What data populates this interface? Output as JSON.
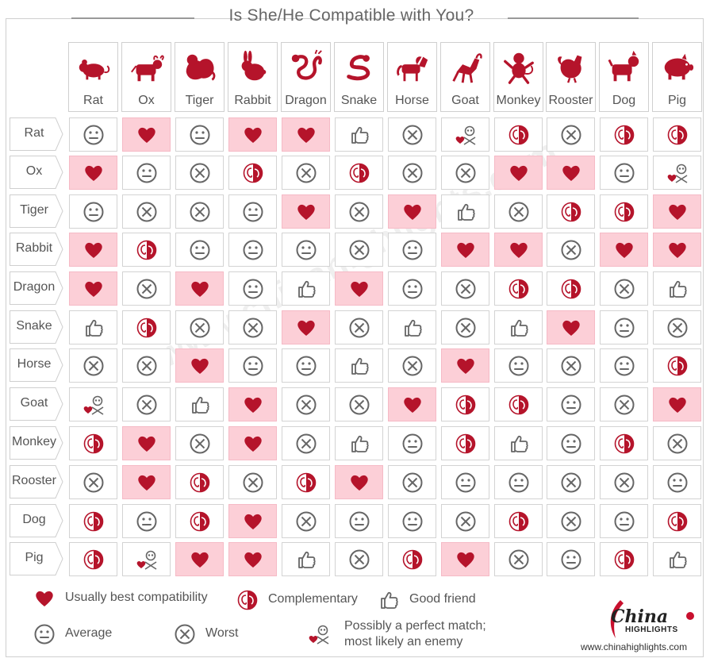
{
  "title": "Is She/He Compatible with You?",
  "watermark": "www.chinahighlights.com",
  "brand": {
    "name": "China",
    "sub": "HIGHLIGHTS",
    "url": "www.chinahighlights.com"
  },
  "colors": {
    "red": "#b5142b",
    "pink": "#fccfd7",
    "gray_icon": "#666666",
    "border": "#cfcfcf"
  },
  "animals": [
    "Rat",
    "Ox",
    "Tiger",
    "Rabbit",
    "Dragon",
    "Snake",
    "Horse",
    "Goat",
    "Monkey",
    "Rooster",
    "Dog",
    "Pig"
  ],
  "legend": {
    "heart": "Usually best compatibility",
    "comp": "Complementary",
    "thumb": "Good friend",
    "avg": "Average",
    "worst": "Worst",
    "enemy_line1": "Possibly a perfect match;",
    "enemy_line2": "most likely an enemy"
  },
  "grid": [
    [
      "avg",
      "heart",
      "avg",
      "heart",
      "heart",
      "thumb",
      "worst",
      "enemy",
      "comp",
      "worst",
      "comp",
      "comp"
    ],
    [
      "heart",
      "avg",
      "worst",
      "comp",
      "worst",
      "comp",
      "worst",
      "worst",
      "heart",
      "heart",
      "avg",
      "enemy"
    ],
    [
      "avg",
      "worst",
      "worst",
      "avg",
      "heart",
      "worst",
      "heart",
      "thumb",
      "worst",
      "comp",
      "comp",
      "heart"
    ],
    [
      "heart",
      "comp",
      "avg",
      "avg",
      "avg",
      "worst",
      "avg",
      "heart",
      "heart",
      "worst",
      "heart",
      "heart"
    ],
    [
      "heart",
      "worst",
      "heart",
      "avg",
      "thumb",
      "heart",
      "avg",
      "worst",
      "comp",
      "comp",
      "worst",
      "thumb"
    ],
    [
      "thumb",
      "comp",
      "worst",
      "worst",
      "heart",
      "worst",
      "thumb",
      "worst",
      "thumb",
      "heart",
      "avg",
      "worst"
    ],
    [
      "worst",
      "worst",
      "heart",
      "avg",
      "avg",
      "thumb",
      "worst",
      "heart",
      "avg",
      "worst",
      "avg",
      "comp"
    ],
    [
      "enemy",
      "worst",
      "thumb",
      "heart",
      "worst",
      "worst",
      "heart",
      "comp",
      "comp",
      "avg",
      "worst",
      "heart"
    ],
    [
      "comp",
      "heart",
      "worst",
      "heart",
      "worst",
      "thumb",
      "avg",
      "comp",
      "thumb",
      "avg",
      "comp",
      "worst"
    ],
    [
      "worst",
      "heart",
      "comp",
      "worst",
      "comp",
      "heart",
      "worst",
      "avg",
      "avg",
      "worst",
      "worst",
      "avg"
    ],
    [
      "comp",
      "avg",
      "comp",
      "heart",
      "worst",
      "avg",
      "avg",
      "worst",
      "comp",
      "worst",
      "avg",
      "comp"
    ],
    [
      "comp",
      "enemy",
      "heart",
      "heart",
      "thumb",
      "worst",
      "comp",
      "heart",
      "worst",
      "avg",
      "comp",
      "thumb"
    ]
  ]
}
